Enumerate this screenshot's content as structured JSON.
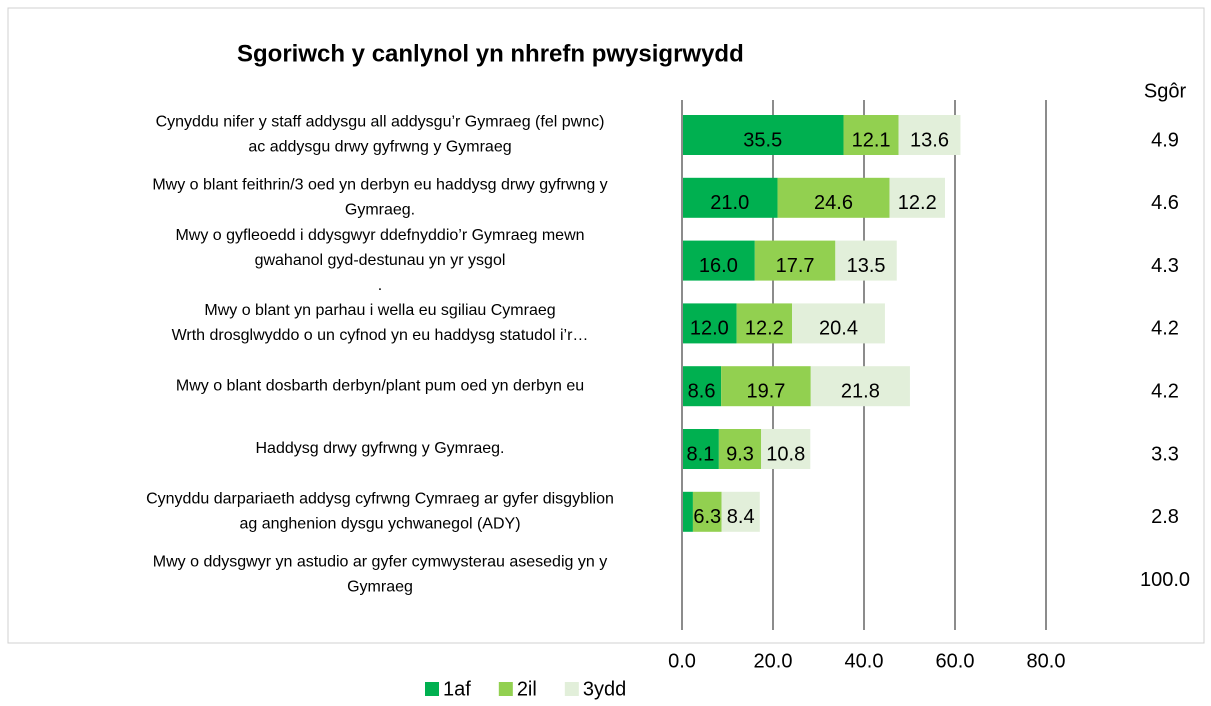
{
  "chart_data": {
    "type": "stacked-bar-horizontal",
    "title": "Sgoriwch y canlynol yn nhrefn pwysigrwydd",
    "categories": [
      [
        "Cynyddu nifer y staff addysgu all addysgu’r Gymraeg (fel pwnc)",
        "ac addysgu drwy gyfrwng y Gymraeg"
      ],
      [
        "Mwy o blant feithrin/3 oed yn derbyn eu haddysg drwy gyfrwng y",
        "Gymraeg."
      ],
      [
        "Mwy o gyfleoedd i ddysgwyr ddefnyddio’r Gymraeg mewn",
        "gwahanol gyd-destunau yn yr ysgol",
        "."
      ],
      [
        "Mwy o blant yn parhau i wella eu sgiliau Cymraeg",
        "Wrth drosglwyddo o un cyfnod yn eu haddysg statudol i’r…"
      ],
      [
        "Mwy o blant dosbarth derbyn/plant pum oed yn derbyn eu"
      ],
      [
        "Haddysg drwy gyfrwng y Gymraeg."
      ],
      [
        "Cynyddu darpariaeth addysg cyfrwng Cymraeg ar gyfer disgyblion",
        "ag anghenion dysgu ychwanegol (ADY)"
      ],
      [
        "Mwy o ddysgwyr yn astudio ar gyfer cymwysterau asesedig yn y",
        "Gymraeg"
      ]
    ],
    "series": [
      {
        "name": "1af",
        "color": "#00b050",
        "values": [
          35.5,
          21.0,
          16.0,
          12.0,
          8.6,
          8.1,
          2.4,
          null
        ],
        "value_labels": [
          "35.5",
          "21.0",
          "16.0",
          "12.0",
          "8.6",
          "8.1",
          null,
          null
        ]
      },
      {
        "name": "2il",
        "color": "#92d050",
        "values": [
          12.1,
          24.6,
          17.7,
          12.2,
          19.7,
          9.3,
          6.3,
          null
        ],
        "value_labels": [
          "12.1",
          "24.6",
          "17.7",
          "12.2",
          "19.7",
          "9.3",
          "6.3",
          null
        ]
      },
      {
        "name": "3ydd",
        "color": "#e2efda",
        "values": [
          13.6,
          12.2,
          13.5,
          20.4,
          21.8,
          10.8,
          8.4,
          null
        ],
        "value_labels": [
          "13.6",
          "12.2",
          "13.5",
          "20.4",
          "21.8",
          "10.8",
          "8.4",
          null
        ]
      }
    ],
    "score_title": "Sgôr",
    "scores": [
      4.9,
      4.6,
      4.3,
      4.2,
      4.2,
      3.3,
      2.8,
      100.0
    ],
    "score_labels": [
      "4.9",
      "4.6",
      "4.3",
      "4.2",
      "4.2",
      "3.3",
      "2.8",
      "100.0"
    ],
    "xlim": [
      0,
      100
    ],
    "xticks": [
      {
        "value": 0,
        "label": "0.0"
      },
      {
        "value": 20,
        "label": "20.0"
      },
      {
        "value": 40,
        "label": "40.0"
      },
      {
        "value": 60,
        "label": "60.0"
      },
      {
        "value": 80,
        "label": "80.0"
      }
    ],
    "grid": true,
    "legend": "bottom"
  }
}
